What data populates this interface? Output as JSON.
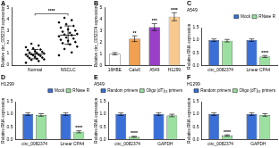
{
  "chart_data": [
    {
      "type": "scatter",
      "title": "A",
      "y_label": "Relative circ_0082374 expression",
      "categories": [
        "Normal",
        "NSCLC"
      ],
      "points": [
        [
          0.2,
          0.35,
          0.45,
          0.5,
          0.55,
          0.6,
          0.65,
          0.7,
          0.75,
          0.8,
          0.85,
          0.9,
          0.9,
          0.95,
          1.0,
          1.05,
          1.1,
          1.15,
          1.2,
          1.3,
          1.35,
          1.45,
          1.55,
          1.7,
          1.85
        ],
        [
          0.85,
          1.1,
          1.4,
          1.6,
          1.8,
          1.9,
          2.0,
          2.1,
          2.2,
          2.3,
          2.4,
          2.5,
          2.6,
          2.65,
          2.7,
          2.8,
          2.9,
          3.0,
          3.1,
          3.25,
          3.4,
          3.55,
          3.7,
          3.9,
          4.1
        ]
      ],
      "means": [
        0.95,
        2.6
      ],
      "errors": [
        0.4,
        0.8
      ],
      "annotation": "****",
      "color": "#000000",
      "ylim": [
        0,
        5
      ],
      "yticks": [
        0,
        1,
        2,
        3,
        4,
        5
      ],
      "grid": false
    },
    {
      "type": "bar",
      "title": "B",
      "y_label": "Relative circ_0082374 expression",
      "categories": [
        "16HBE",
        "Calu6",
        "A549",
        "H1299"
      ],
      "values": [
        1.0,
        2.3,
        3.3,
        4.2
      ],
      "errors": [
        0.1,
        0.25,
        0.3,
        0.35
      ],
      "annotations": [
        null,
        "**",
        "***",
        "****"
      ],
      "colors": [
        "#ffffff",
        "#f0a050",
        "#9b3fc8",
        "#f7c98f"
      ],
      "ylim": [
        0,
        5
      ],
      "yticks": [
        0,
        1,
        2,
        3,
        4,
        5
      ],
      "grid": false
    },
    {
      "type": "bar",
      "title": "C",
      "subtitle": "A549",
      "y_label": "Relative RNA expression",
      "categories": [
        "circ_0082374",
        "Linear CPA4"
      ],
      "series": [
        {
          "name": "Mock",
          "color": "#3a6fd8",
          "values": [
            1.0,
            1.0
          ],
          "errors": [
            0.05,
            0.05
          ],
          "annotations": [
            null,
            null
          ]
        },
        {
          "name": "RNase R",
          "color": "#9be0a0",
          "values": [
            0.98,
            0.35
          ],
          "errors": [
            0.05,
            0.04
          ],
          "annotations": [
            null,
            "****"
          ]
        }
      ],
      "legend": "top",
      "ylim": [
        0,
        1.5
      ],
      "yticks": [
        {
          "value": 0,
          "label": "0.0"
        },
        {
          "value": 0.5,
          "label": "0.5"
        },
        {
          "value": 1,
          "label": "1.0"
        },
        {
          "value": 1.5,
          "label": "1.5"
        }
      ],
      "grid": false
    },
    {
      "type": "bar",
      "title": "D",
      "subtitle": "H1299",
      "y_label": "Relative RNA expression",
      "categories": [
        "circ_0082374",
        "Linear CPA4"
      ],
      "series": [
        {
          "name": "Mock",
          "color": "#3a6fd8",
          "values": [
            1.0,
            1.0
          ],
          "errors": [
            0.05,
            0.05
          ],
          "annotations": [
            null,
            null
          ]
        },
        {
          "name": "RNase R",
          "color": "#9be0a0",
          "values": [
            0.97,
            0.3
          ],
          "errors": [
            0.05,
            0.04
          ],
          "annotations": [
            null,
            "****"
          ]
        }
      ],
      "legend": "top",
      "ylim": [
        0,
        1.5
      ],
      "yticks": [
        {
          "value": 0,
          "label": "0.0"
        },
        {
          "value": 0.5,
          "label": "0.5"
        },
        {
          "value": 1,
          "label": "1.0"
        },
        {
          "value": 1.5,
          "label": "1.5"
        }
      ],
      "grid": false
    },
    {
      "type": "bar",
      "title": "E",
      "subtitle": "A549",
      "y_label": "Relative RNA expression",
      "categories": [
        "circ_0082374",
        "GAPDH"
      ],
      "series": [
        {
          "name": "Random primers",
          "color": "#3a6fd8",
          "values": [
            1.0,
            1.0
          ],
          "errors": [
            0.05,
            0.05
          ],
          "annotations": [
            null,
            null
          ]
        },
        {
          "name": "Oligo (dT)₁₈ primers",
          "color": "#9be0a0",
          "values": [
            0.1,
            0.95
          ],
          "errors": [
            0.02,
            0.05
          ],
          "annotations": [
            "****",
            null
          ]
        }
      ],
      "legend": "top",
      "ylim": [
        0,
        1.5
      ],
      "yticks": [
        {
          "value": 0,
          "label": "0.0"
        },
        {
          "value": 0.5,
          "label": "0.5"
        },
        {
          "value": 1,
          "label": "1.0"
        },
        {
          "value": 1.5,
          "label": "1.5"
        }
      ],
      "grid": false
    },
    {
      "type": "bar",
      "title": "F",
      "subtitle": "H1299",
      "y_label": "Relative RNA expression",
      "categories": [
        "circ_0082374",
        "GAPDH"
      ],
      "series": [
        {
          "name": "Random primers",
          "color": "#3a6fd8",
          "values": [
            1.0,
            1.0
          ],
          "errors": [
            0.05,
            0.05
          ],
          "annotations": [
            null,
            null
          ]
        },
        {
          "name": "Oligo (dT)₁₈ primers",
          "color": "#9be0a0",
          "values": [
            0.15,
            0.97
          ],
          "errors": [
            0.03,
            0.05
          ],
          "annotations": [
            "****",
            null
          ]
        }
      ],
      "legend": "top",
      "ylim": [
        0,
        1.5
      ],
      "yticks": [
        {
          "value": 0,
          "label": "0.0"
        },
        {
          "value": 0.5,
          "label": "0.5"
        },
        {
          "value": 1,
          "label": "1.0"
        },
        {
          "value": 1.5,
          "label": "1.5"
        }
      ],
      "grid": false
    }
  ]
}
